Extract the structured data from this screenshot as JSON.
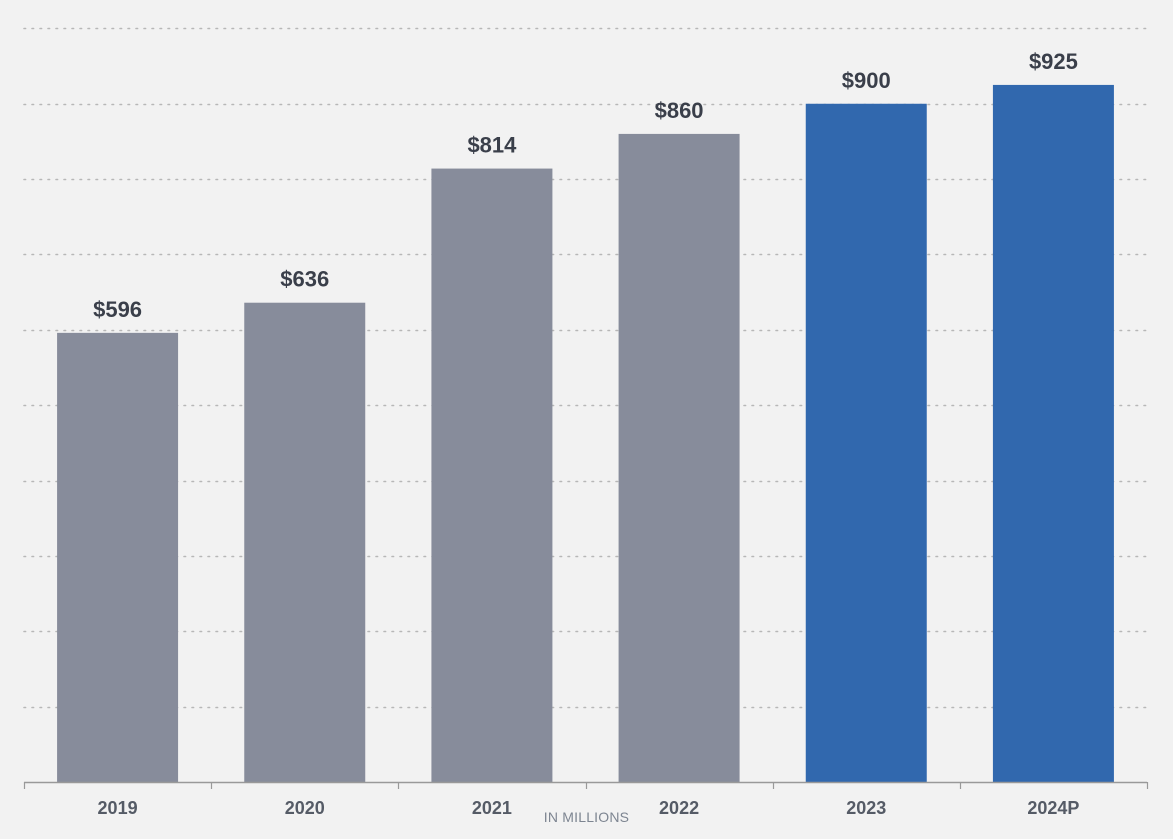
{
  "chart_data": {
    "type": "bar",
    "categories": [
      "2019",
      "2020",
      "2021",
      "2022",
      "2023",
      "2024P"
    ],
    "values": [
      596,
      636,
      814,
      860,
      900,
      925
    ],
    "value_labels": [
      "$596",
      "$636",
      "$814",
      "$860",
      "$900",
      "$925"
    ],
    "bar_colors": [
      "#878c9b",
      "#878c9b",
      "#878c9b",
      "#878c9b",
      "#3168ae",
      "#3168ae"
    ],
    "ylim": [
      0,
      1000
    ],
    "grid": true,
    "note": "IN MILLIONS"
  },
  "colors": {
    "background": "#f2f2f2",
    "historical": "#878c9b",
    "projected": "#3168ae",
    "label_text": "#3a3f4a",
    "axis": "#999999",
    "grid": "#b7b7b7"
  }
}
